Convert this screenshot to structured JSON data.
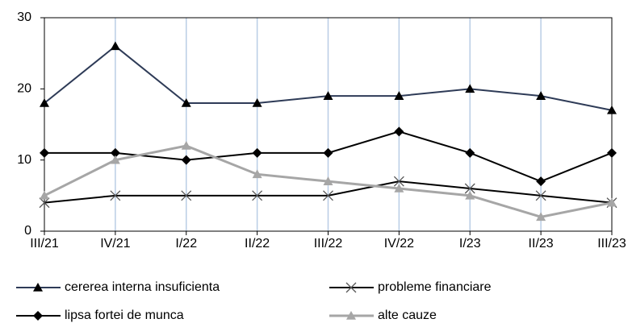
{
  "chart_data": {
    "type": "line",
    "categories": [
      "III/21",
      "IV/21",
      "I/22",
      "II/22",
      "III/22",
      "IV/22",
      "I/23",
      "II/23",
      "III/23"
    ],
    "series": [
      {
        "name": "cererea interna insuficienta",
        "color": "#2e3b57",
        "marker": "triangle",
        "marker_color": "#000000",
        "values": [
          18,
          26,
          18,
          18,
          19,
          19,
          20,
          19,
          17
        ]
      },
      {
        "name": "probleme financiare",
        "color": "#000000",
        "marker": "x",
        "marker_color": "#555555",
        "values": [
          4,
          5,
          5,
          5,
          5,
          7,
          6,
          5,
          4
        ]
      },
      {
        "name": "lipsa fortei de munca",
        "color": "#000000",
        "marker": "diamond",
        "marker_color": "#000000",
        "values": [
          11,
          11,
          10,
          11,
          11,
          14,
          11,
          7,
          11
        ]
      },
      {
        "name": "alte cauze",
        "color": "#a6a6a6",
        "marker": "triangle",
        "marker_color": "#a6a6a6",
        "values": [
          5,
          10,
          12,
          8,
          7,
          6,
          5,
          2,
          4
        ]
      }
    ],
    "ylim": [
      0,
      30
    ],
    "yticks": [
      0,
      10,
      20,
      30
    ],
    "grid": "x",
    "legend": "bottom"
  }
}
